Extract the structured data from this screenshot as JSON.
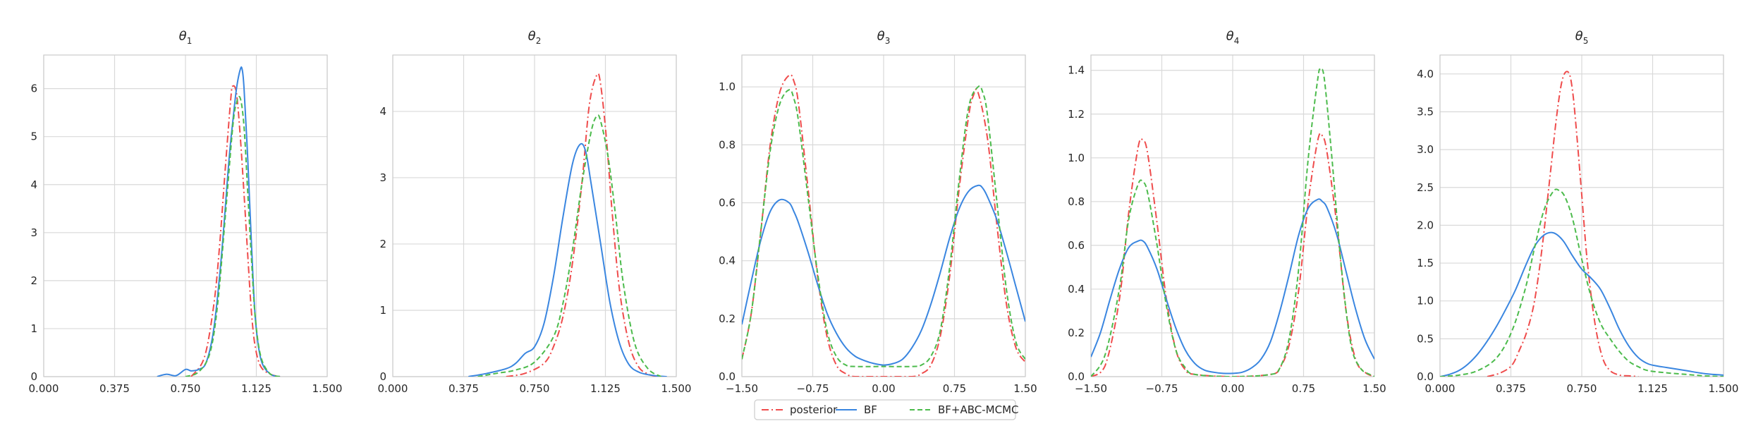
{
  "figure": {
    "legend": {
      "placement": "bottom-center",
      "entries": [
        {
          "name": "posterior",
          "color": "#ef4c4c",
          "style": "dash-dot"
        },
        {
          "name": "BF",
          "color": "#3a86e0",
          "style": "solid"
        },
        {
          "name": "BF+ABC-MCMC",
          "color": "#4cbb4c",
          "style": "dashed"
        }
      ]
    }
  },
  "chart_data": [
    {
      "type": "line",
      "title": "θ",
      "title_sub": "1",
      "xlim": [
        0.0,
        1.5
      ],
      "ylim": [
        0,
        6.7
      ],
      "xticks": [
        "0.000",
        "0.375",
        "0.750",
        "1.125",
        "1.500"
      ],
      "xtick_values": [
        0.0,
        0.375,
        0.75,
        1.125,
        1.5
      ],
      "yticks": [
        "0",
        "1",
        "2",
        "3",
        "4",
        "5",
        "6"
      ],
      "ytick_values": [
        0,
        1,
        2,
        3,
        4,
        5,
        6
      ],
      "grid": true,
      "series": [
        {
          "name": "posterior",
          "x": [
            0.78,
            0.85,
            0.9,
            0.93,
            0.96,
            0.99,
            1.0,
            1.02,
            1.04,
            1.06,
            1.08,
            1.1,
            1.12,
            1.15,
            1.2,
            1.25
          ],
          "y": [
            0,
            0.4,
            1.5,
            2.7,
            4.3,
            5.8,
            6.05,
            5.9,
            5.0,
            3.8,
            2.5,
            1.3,
            0.6,
            0.2,
            0.05,
            0
          ]
        },
        {
          "name": "BF",
          "x": [
            0.6,
            0.65,
            0.7,
            0.75,
            0.78,
            0.82,
            0.86,
            0.9,
            0.94,
            0.98,
            1.0,
            1.02,
            1.04,
            1.05,
            1.06,
            1.08,
            1.1,
            1.12,
            1.15,
            1.2,
            1.25
          ],
          "y": [
            0,
            0.05,
            0.02,
            0.15,
            0.12,
            0.15,
            0.3,
            1.0,
            2.5,
            4.5,
            5.3,
            6.0,
            6.4,
            6.4,
            6.0,
            4.5,
            2.7,
            1.2,
            0.35,
            0.05,
            0
          ]
        },
        {
          "name": "BF+ABC-MCMC",
          "x": [
            0.75,
            0.82,
            0.88,
            0.92,
            0.96,
            1.0,
            1.02,
            1.04,
            1.06,
            1.08,
            1.1,
            1.12,
            1.15,
            1.2,
            1.25
          ],
          "y": [
            0,
            0.1,
            0.5,
            1.5,
            3.3,
            5.2,
            5.7,
            5.8,
            5.2,
            3.8,
            2.4,
            1.2,
            0.4,
            0.05,
            0
          ]
        }
      ]
    },
    {
      "type": "line",
      "title": "θ",
      "title_sub": "2",
      "xlim": [
        0.0,
        1.5
      ],
      "ylim": [
        0,
        4.85
      ],
      "xticks": [
        "0.000",
        "0.375",
        "0.750",
        "1.125",
        "1.500"
      ],
      "xtick_values": [
        0.0,
        0.375,
        0.75,
        1.125,
        1.5
      ],
      "yticks": [
        "0",
        "1",
        "2",
        "3",
        "4"
      ],
      "ytick_values": [
        0,
        1,
        2,
        3,
        4
      ],
      "grid": true,
      "series": [
        {
          "name": "posterior",
          "x": [
            0.6,
            0.7,
            0.8,
            0.85,
            0.9,
            0.95,
            1.0,
            1.04,
            1.08,
            1.1,
            1.13,
            1.16,
            1.2,
            1.25,
            1.3,
            1.35,
            1.4
          ],
          "y": [
            0,
            0.05,
            0.2,
            0.45,
            0.9,
            1.7,
            2.9,
            4.1,
            4.55,
            4.4,
            3.6,
            2.5,
            1.3,
            0.5,
            0.15,
            0.04,
            0
          ]
        },
        {
          "name": "BF",
          "x": [
            0.4,
            0.5,
            0.6,
            0.65,
            0.7,
            0.75,
            0.8,
            0.85,
            0.9,
            0.95,
            0.99,
            1.02,
            1.05,
            1.1,
            1.15,
            1.2,
            1.25,
            1.3,
            1.35,
            1.4,
            1.45
          ],
          "y": [
            0,
            0.05,
            0.12,
            0.2,
            0.35,
            0.45,
            0.8,
            1.5,
            2.4,
            3.2,
            3.5,
            3.4,
            2.9,
            2.0,
            1.1,
            0.5,
            0.18,
            0.07,
            0.03,
            0.01,
            0
          ]
        },
        {
          "name": "BF+ABC-MCMC",
          "x": [
            0.45,
            0.55,
            0.65,
            0.75,
            0.85,
            0.9,
            0.95,
            1.0,
            1.05,
            1.08,
            1.1,
            1.14,
            1.18,
            1.22,
            1.28,
            1.35,
            1.42
          ],
          "y": [
            0,
            0.05,
            0.1,
            0.22,
            0.6,
            1.1,
            1.9,
            2.9,
            3.7,
            3.93,
            3.85,
            3.3,
            2.4,
            1.4,
            0.5,
            0.12,
            0
          ]
        }
      ]
    },
    {
      "type": "line",
      "title": "θ",
      "title_sub": "3",
      "xlim": [
        -1.5,
        1.5
      ],
      "ylim": [
        0,
        1.11
      ],
      "xticks": [
        "−1.50",
        "−0.75",
        "0.00",
        "0.75",
        "1.50"
      ],
      "xtick_values": [
        -1.5,
        -0.75,
        0.0,
        0.75,
        1.5
      ],
      "yticks": [
        "0.0",
        "0.2",
        "0.4",
        "0.6",
        "0.8",
        "1.0"
      ],
      "ytick_values": [
        0.0,
        0.2,
        0.4,
        0.6,
        0.8,
        1.0
      ],
      "grid": true,
      "series": [
        {
          "name": "posterior",
          "x": [
            -1.5,
            -1.4,
            -1.3,
            -1.2,
            -1.1,
            -1.0,
            -0.95,
            -0.9,
            -0.8,
            -0.7,
            -0.6,
            -0.5,
            -0.4,
            -0.3,
            0.0,
            0.3,
            0.4,
            0.5,
            0.6,
            0.7,
            0.8,
            0.9,
            0.95,
            1.0,
            1.1,
            1.2,
            1.3,
            1.4,
            1.5
          ],
          "y": [
            0.06,
            0.22,
            0.5,
            0.8,
            0.98,
            1.04,
            1.02,
            0.94,
            0.65,
            0.35,
            0.14,
            0.04,
            0.01,
            0.0,
            0.0,
            0.0,
            0.01,
            0.04,
            0.14,
            0.35,
            0.65,
            0.9,
            0.97,
            0.98,
            0.82,
            0.52,
            0.25,
            0.1,
            0.05
          ]
        },
        {
          "name": "BF",
          "x": [
            -1.5,
            -1.4,
            -1.3,
            -1.2,
            -1.1,
            -1.0,
            -0.95,
            -0.9,
            -0.8,
            -0.7,
            -0.6,
            -0.5,
            -0.4,
            -0.3,
            -0.2,
            -0.1,
            0.0,
            0.1,
            0.2,
            0.3,
            0.4,
            0.5,
            0.6,
            0.7,
            0.8,
            0.9,
            1.0,
            1.05,
            1.1,
            1.2,
            1.3,
            1.4,
            1.5
          ],
          "y": [
            0.18,
            0.33,
            0.47,
            0.57,
            0.61,
            0.6,
            0.57,
            0.53,
            0.43,
            0.32,
            0.22,
            0.15,
            0.1,
            0.07,
            0.055,
            0.045,
            0.04,
            0.045,
            0.06,
            0.1,
            0.16,
            0.25,
            0.36,
            0.48,
            0.58,
            0.64,
            0.66,
            0.65,
            0.62,
            0.54,
            0.43,
            0.31,
            0.19
          ]
        },
        {
          "name": "BF+ABC-MCMC",
          "x": [
            -1.5,
            -1.4,
            -1.3,
            -1.2,
            -1.1,
            -1.0,
            -0.95,
            -0.9,
            -0.8,
            -0.7,
            -0.6,
            -0.5,
            -0.4,
            -0.3,
            0.0,
            0.3,
            0.4,
            0.5,
            0.6,
            0.7,
            0.8,
            0.9,
            1.0,
            1.05,
            1.1,
            1.2,
            1.3,
            1.4,
            1.5
          ],
          "y": [
            0.06,
            0.22,
            0.5,
            0.78,
            0.94,
            0.99,
            0.96,
            0.88,
            0.62,
            0.36,
            0.16,
            0.07,
            0.04,
            0.035,
            0.035,
            0.035,
            0.04,
            0.07,
            0.16,
            0.38,
            0.68,
            0.93,
            1.0,
            0.98,
            0.9,
            0.6,
            0.3,
            0.12,
            0.06
          ]
        }
      ]
    },
    {
      "type": "line",
      "title": "θ",
      "title_sub": "4",
      "xlim": [
        -1.5,
        1.5
      ],
      "ylim": [
        0,
        1.47
      ],
      "xticks": [
        "−1.50",
        "−0.75",
        "0.00",
        "0.75",
        "1.50"
      ],
      "xtick_values": [
        -1.5,
        -0.75,
        0.0,
        0.75,
        1.5
      ],
      "yticks": [
        "0.0",
        "0.2",
        "0.4",
        "0.6",
        "0.8",
        "1.0",
        "1.2",
        "1.4"
      ],
      "ytick_values": [
        0.0,
        0.2,
        0.4,
        0.6,
        0.8,
        1.0,
        1.2,
        1.4
      ],
      "grid": true,
      "series": [
        {
          "name": "posterior",
          "x": [
            -1.5,
            -1.35,
            -1.2,
            -1.1,
            -1.0,
            -0.95,
            -0.9,
            -0.8,
            -0.7,
            -0.6,
            -0.5,
            -0.4,
            0.0,
            0.4,
            0.5,
            0.6,
            0.7,
            0.8,
            0.9,
            0.95,
            1.0,
            1.1,
            1.2,
            1.3,
            1.4,
            1.5
          ],
          "y": [
            0.0,
            0.05,
            0.35,
            0.75,
            1.05,
            1.08,
            1.02,
            0.7,
            0.35,
            0.12,
            0.03,
            0.01,
            0.0,
            0.01,
            0.04,
            0.15,
            0.4,
            0.8,
            1.08,
            1.1,
            1.02,
            0.7,
            0.3,
            0.08,
            0.02,
            0.0
          ]
        },
        {
          "name": "BF",
          "x": [
            -1.5,
            -1.4,
            -1.3,
            -1.2,
            -1.1,
            -1.0,
            -0.95,
            -0.9,
            -0.8,
            -0.7,
            -0.6,
            -0.5,
            -0.4,
            -0.3,
            -0.2,
            -0.1,
            0.0,
            0.1,
            0.2,
            0.3,
            0.4,
            0.5,
            0.6,
            0.7,
            0.8,
            0.9,
            0.95,
            1.0,
            1.1,
            1.2,
            1.3,
            1.4,
            1.5
          ],
          "y": [
            0.09,
            0.2,
            0.35,
            0.49,
            0.59,
            0.62,
            0.62,
            0.59,
            0.49,
            0.35,
            0.22,
            0.12,
            0.06,
            0.03,
            0.02,
            0.015,
            0.015,
            0.02,
            0.04,
            0.08,
            0.16,
            0.3,
            0.47,
            0.65,
            0.77,
            0.81,
            0.8,
            0.77,
            0.65,
            0.48,
            0.31,
            0.17,
            0.08
          ]
        },
        {
          "name": "BF+ABC-MCMC",
          "x": [
            -1.5,
            -1.35,
            -1.2,
            -1.1,
            -1.0,
            -0.95,
            -0.9,
            -0.8,
            -0.7,
            -0.6,
            -0.5,
            -0.4,
            0.0,
            0.4,
            0.5,
            0.6,
            0.7,
            0.8,
            0.9,
            0.93,
            0.97,
            1.05,
            1.15,
            1.25,
            1.35,
            1.45,
            1.5
          ],
          "y": [
            0.0,
            0.1,
            0.4,
            0.72,
            0.88,
            0.89,
            0.84,
            0.6,
            0.32,
            0.12,
            0.04,
            0.01,
            0.0,
            0.01,
            0.04,
            0.18,
            0.5,
            1.0,
            1.36,
            1.4,
            1.36,
            1.0,
            0.5,
            0.15,
            0.04,
            0.01,
            0.0
          ]
        }
      ]
    },
    {
      "type": "line",
      "title": "θ",
      "title_sub": "5",
      "xlim": [
        0.0,
        1.5
      ],
      "ylim": [
        0,
        4.25
      ],
      "xticks": [
        "0.000",
        "0.375",
        "0.750",
        "1.125",
        "1.500"
      ],
      "xtick_values": [
        0.0,
        0.375,
        0.75,
        1.125,
        1.5
      ],
      "yticks": [
        "0.0",
        "0.5",
        "1.0",
        "1.5",
        "2.0",
        "2.5",
        "3.0",
        "3.5",
        "4.0"
      ],
      "ytick_values": [
        0.0,
        0.5,
        1.0,
        1.5,
        2.0,
        2.5,
        3.0,
        3.5,
        4.0
      ],
      "grid": true,
      "series": [
        {
          "name": "posterior",
          "x": [
            0.25,
            0.32,
            0.38,
            0.42,
            0.46,
            0.5,
            0.54,
            0.58,
            0.62,
            0.65,
            0.68,
            0.7,
            0.72,
            0.75,
            0.78,
            0.82,
            0.86,
            0.9,
            0.95,
            1.0,
            1.05
          ],
          "y": [
            0,
            0.05,
            0.15,
            0.35,
            0.6,
            1.0,
            1.7,
            2.6,
            3.5,
            3.95,
            4.02,
            3.8,
            3.3,
            2.4,
            1.5,
            0.7,
            0.25,
            0.08,
            0.02,
            0.01,
            0
          ]
        },
        {
          "name": "BF",
          "x": [
            0.0,
            0.05,
            0.1,
            0.15,
            0.2,
            0.25,
            0.3,
            0.35,
            0.4,
            0.45,
            0.5,
            0.55,
            0.6,
            0.65,
            0.7,
            0.75,
            0.8,
            0.85,
            0.9,
            0.95,
            1.0,
            1.05,
            1.1,
            1.15,
            1.2,
            1.3,
            1.4,
            1.5
          ],
          "y": [
            0.0,
            0.03,
            0.08,
            0.17,
            0.3,
            0.47,
            0.67,
            0.9,
            1.15,
            1.45,
            1.72,
            1.87,
            1.9,
            1.8,
            1.6,
            1.42,
            1.3,
            1.15,
            0.9,
            0.62,
            0.4,
            0.25,
            0.17,
            0.14,
            0.12,
            0.08,
            0.04,
            0.02
          ]
        },
        {
          "name": "BF+ABC-MCMC",
          "x": [
            0.0,
            0.1,
            0.2,
            0.3,
            0.38,
            0.45,
            0.5,
            0.55,
            0.6,
            0.63,
            0.66,
            0.7,
            0.75,
            0.8,
            0.85,
            0.9,
            0.95,
            1.0,
            1.05,
            1.1,
            1.2,
            1.3,
            1.4,
            1.5
          ],
          "y": [
            0.0,
            0.02,
            0.08,
            0.25,
            0.6,
            1.15,
            1.7,
            2.2,
            2.45,
            2.46,
            2.38,
            2.1,
            1.55,
            1.05,
            0.7,
            0.5,
            0.33,
            0.2,
            0.13,
            0.08,
            0.05,
            0.03,
            0.01,
            0.0
          ]
        }
      ]
    }
  ]
}
